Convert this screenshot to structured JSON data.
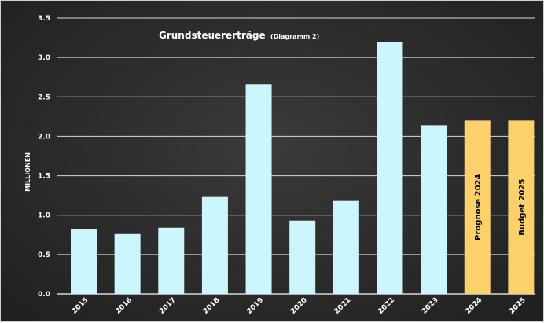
{
  "chart_data": {
    "type": "bar",
    "title": "Grundsteuererträge",
    "subtitle": "(Diagramm 2)",
    "ylabel": "MILLIONEN",
    "xlabel": "",
    "ylim": [
      0,
      3.5
    ],
    "yticks": [
      "0.0",
      "0.5",
      "1.0",
      "1.5",
      "2.0",
      "2.5",
      "3.0",
      "3.5"
    ],
    "grid": true,
    "categories": [
      "2015",
      "2016",
      "2017",
      "2018",
      "2019",
      "2020",
      "2021",
      "2022",
      "2023",
      "2024",
      "2025"
    ],
    "values": [
      0.82,
      0.76,
      0.84,
      1.23,
      2.66,
      0.93,
      1.18,
      3.2,
      2.14,
      2.2,
      2.2
    ],
    "bar_labels": [
      "",
      "",
      "",
      "",
      "",
      "",
      "",
      "",
      "",
      "Prognose 2024",
      "Budget 2025"
    ],
    "colors": {
      "actual": "#ccf6fd",
      "projection": "#fcd06a",
      "background": "#2f2f2f",
      "grid": "#d8d8d8",
      "text": "#ffffff"
    }
  }
}
